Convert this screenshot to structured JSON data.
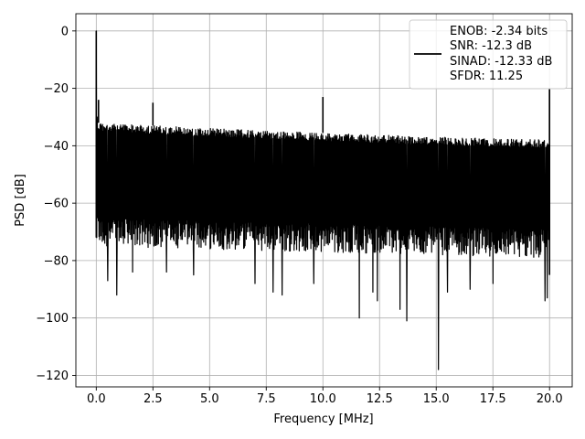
{
  "chart_data": {
    "type": "line",
    "xlabel": "Frequency [MHz]",
    "ylabel": "PSD [dB]",
    "xlim": [
      -0.9,
      21.0
    ],
    "ylim": [
      -124,
      6
    ],
    "xticks": [
      0.0,
      2.5,
      5.0,
      7.5,
      10.0,
      12.5,
      15.0,
      17.5,
      20.0
    ],
    "xtick_labels": [
      "0.0",
      "2.5",
      "5.0",
      "7.5",
      "10.0",
      "12.5",
      "15.0",
      "17.5",
      "20.0"
    ],
    "yticks": [
      0,
      -20,
      -40,
      -60,
      -80,
      -100,
      -120
    ],
    "ytick_labels": [
      "0",
      "−20",
      "−40",
      "−60",
      "−80",
      "−100",
      "−120"
    ],
    "grid": true,
    "legend_position": "upper right",
    "line_color": "#000000",
    "legend_lines": [
      "ENOB: -2.34 bits",
      "SNR: -12.3 dB",
      "SINAD: -12.33 dB",
      "SFDR: 11.25"
    ],
    "noise_floor": {
      "x_start": 0.05,
      "x_end": 20.0,
      "upper_envelope": [
        [
          0.05,
          -32
        ],
        [
          5.0,
          -34
        ],
        [
          10.0,
          -35.5
        ],
        [
          15.0,
          -37
        ],
        [
          20.0,
          -38
        ]
      ],
      "lower_envelope": [
        [
          0.05,
          -72
        ],
        [
          20.0,
          -76
        ]
      ]
    },
    "spikes": [
      {
        "x": 0.0,
        "y": 0
      },
      {
        "x": 0.1,
        "y": -24
      },
      {
        "x": 2.5,
        "y": -25
      },
      {
        "x": 10.0,
        "y": -23
      },
      {
        "x": 20.0,
        "y": -20
      }
    ],
    "dips": [
      {
        "x": 0.5,
        "y": -87
      },
      {
        "x": 0.9,
        "y": -92
      },
      {
        "x": 1.6,
        "y": -84
      },
      {
        "x": 3.1,
        "y": -84
      },
      {
        "x": 4.3,
        "y": -85
      },
      {
        "x": 7.0,
        "y": -88
      },
      {
        "x": 7.8,
        "y": -91
      },
      {
        "x": 8.2,
        "y": -92
      },
      {
        "x": 9.6,
        "y": -88
      },
      {
        "x": 11.6,
        "y": -100
      },
      {
        "x": 12.2,
        "y": -91
      },
      {
        "x": 12.4,
        "y": -94
      },
      {
        "x": 13.4,
        "y": -97
      },
      {
        "x": 13.7,
        "y": -101
      },
      {
        "x": 15.1,
        "y": -118
      },
      {
        "x": 15.5,
        "y": -91
      },
      {
        "x": 16.5,
        "y": -90
      },
      {
        "x": 17.5,
        "y": -88
      },
      {
        "x": 19.8,
        "y": -94
      },
      {
        "x": 19.9,
        "y": -93
      }
    ]
  }
}
